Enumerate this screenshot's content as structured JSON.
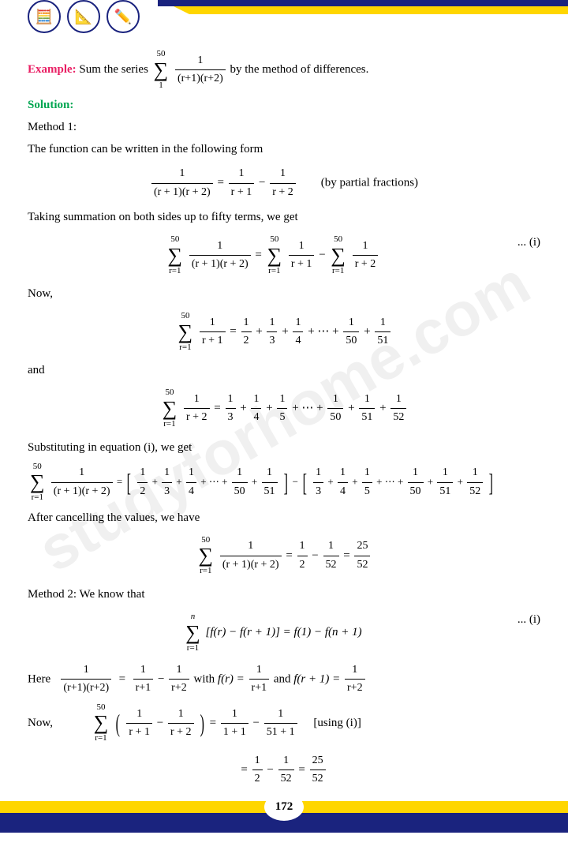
{
  "labels": {
    "example": "Example:",
    "example_text": " Sum the series ",
    "example_end": " by the method of differences.",
    "solution": "Solution:",
    "method1": "Method 1:",
    "line1": "The function can be written in the following form",
    "pf_note": "(by partial fractions)",
    "line2": "Taking summation on both sides up to fifty terms, we get",
    "eq_i": "... (i)",
    "now": "Now,",
    "and": "and",
    "line3": "Substituting in equation (i), we get",
    "line4": "After cancelling the values, we have",
    "method2": "Method 2: We know that",
    "here": "Here",
    "with": " with ",
    "and2": " and ",
    "using": "[using (i)]",
    "page": "172",
    "watermark": "studyforhome.com"
  },
  "math": {
    "sum50": "50",
    "sum1": "1",
    "sumr1": "r=1",
    "sumn": "n",
    "f_main_n": "1",
    "f_main_d": "(r+1)(r+2)",
    "f_main_d2": "(r + 1)(r + 2)",
    "fr1_n": "1",
    "fr1_d": "r+1",
    "fr1_d2": "r + 1",
    "fr2_n": "1",
    "fr2_d": "r+2",
    "fr2_d2": "r + 2",
    "half": "1",
    "d2": "2",
    "d3": "3",
    "d4": "4",
    "d5": "5",
    "d50": "50",
    "d51": "51",
    "d52": "52",
    "d1p1": "1 + 1",
    "d51p1": "51 + 1",
    "n25": "25",
    "fexpr": "[f(r) − f(r + 1)] = f(1) − f(n + 1)",
    "fr": "f(r) = ",
    "fr1p": "f(r + 1) = ",
    "dots": "+ ⋯ +",
    "eq": "=",
    "minus": "−",
    "plus": "+"
  },
  "colors": {
    "blue": "#1a237e",
    "yellow": "#ffd600",
    "pink": "#e91e63",
    "green": "#00a651"
  }
}
